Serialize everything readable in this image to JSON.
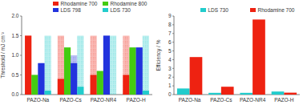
{
  "chart_data": [
    {
      "type": "bar",
      "categories": [
        "PAZO-Na",
        "PAZO-Cs",
        "PAZO-NR4",
        "PAZO-H"
      ],
      "series": [
        {
          "name": "Rhodamine 700",
          "color": "#ee2211",
          "values": [
            1.5,
            0.4,
            0.5,
            0.5
          ],
          "hatched_values": [
            1.5,
            1.5,
            1.5,
            1.5
          ]
        },
        {
          "name": "Rhodamine 800",
          "color": "#44cc11",
          "values": [
            0.5,
            1.2,
            0.6,
            1.2
          ],
          "hatched_values": [
            0.5,
            1.2,
            0.6,
            1.2
          ]
        },
        {
          "name": "LDS 798",
          "color": "#2233dd",
          "values": [
            0.8,
            0.8,
            1.5,
            1.2
          ],
          "hatched_values": [
            0.8,
            1.0,
            1.5,
            1.2
          ]
        },
        {
          "name": "LDS 730",
          "color": "#22cccc",
          "values": [
            0.1,
            0.2,
            0.0,
            0.1
          ],
          "hatched_values": [
            1.5,
            1.5,
            1.5,
            1.5
          ]
        }
      ],
      "ylabel": "Threshold / mJ cm⁻²",
      "ylim": [
        0,
        2.0
      ],
      "yticks": [
        {
          "value": 0,
          "label": "0.0"
        },
        0.5,
        {
          "value": 1,
          "label": "1.0"
        },
        1.5,
        {
          "value": 2,
          "label": "2.0"
        }
      ],
      "legend": "upper right",
      "grid": false
    },
    {
      "type": "bar",
      "categories": [
        "PAZO-Na",
        "PAZO-Cs",
        "PAZO-NR4",
        "PAZO-H"
      ],
      "series": [
        {
          "name": "LDS 730",
          "color": "#22cccc",
          "values": [
            0.7,
            0.2,
            0.2,
            0.35
          ]
        },
        {
          "name": "Rhodamine 700",
          "color": "#ee2211",
          "values": [
            4.3,
            0.9,
            8.6,
            0.22
          ]
        }
      ],
      "ylabel": "Efficiency / %",
      "ylim": [
        0,
        9
      ],
      "yticks": [
        0,
        1,
        2,
        3,
        4,
        5,
        6,
        7,
        8,
        9
      ],
      "legend": "upper right",
      "grid": false
    }
  ]
}
